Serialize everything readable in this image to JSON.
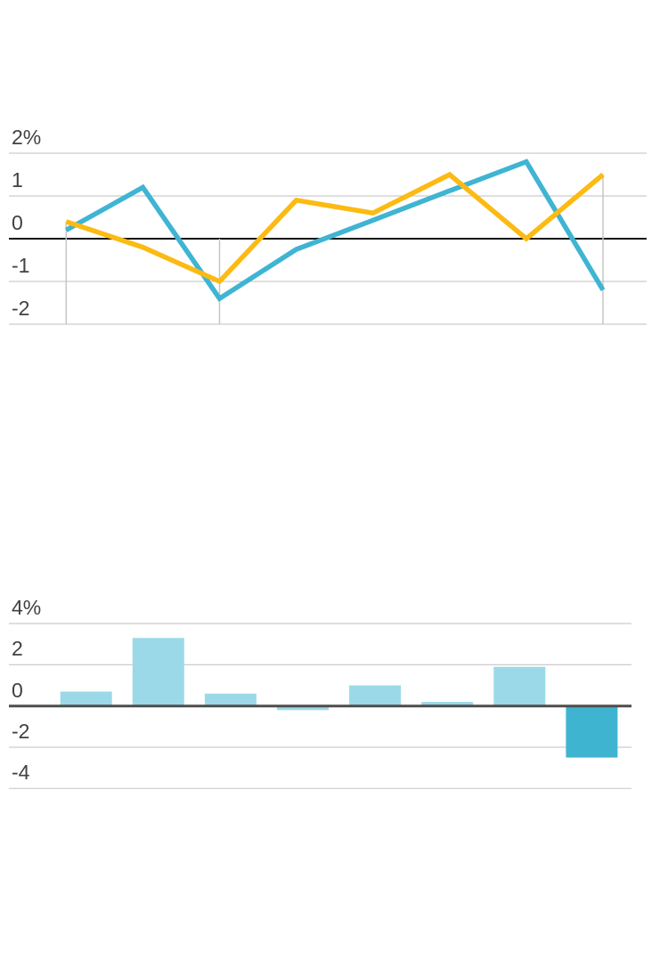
{
  "page": {
    "background": "#ffffff"
  },
  "colors": {
    "teal": "#3fb4d3",
    "yellow": "#fcba12",
    "light_blue_bar": "#9bd9e8",
    "dark_blue_bar": "#3fb4d1",
    "gridline": "#cccccc",
    "vertical_marker": "#c6c6c6",
    "zero_axis_top": "#111111",
    "zero_axis_bottom": "#4d4d4d",
    "tick_text": "#414141"
  },
  "chart_data": [
    {
      "type": "line",
      "title": "",
      "ylabel": "percent",
      "ylim": [
        -2,
        2
      ],
      "grid": true,
      "legend": "none",
      "y_ticks": [
        {
          "label": "2%",
          "value": 2
        },
        {
          "label": "1",
          "value": 1
        },
        {
          "label": "0",
          "value": 0
        },
        {
          "label": "-1",
          "value": -1
        },
        {
          "label": "-2",
          "value": -2
        }
      ],
      "n_points": 8,
      "series": [
        {
          "name": "teal-series",
          "color_key": "teal",
          "values": [
            0.2,
            1.2,
            -1.4,
            -0.25,
            0.43,
            1.12,
            1.8,
            -1.2
          ]
        },
        {
          "name": "yellow-series",
          "color_key": "yellow",
          "values": [
            0.4,
            -0.2,
            -1.0,
            0.9,
            0.6,
            1.5,
            0.0,
            1.5
          ]
        }
      ],
      "vertical_markers": [
        {
          "x_index": 0,
          "from_value": 0.4,
          "to_value": -2
        },
        {
          "x_index": 2,
          "from_value": 0.0,
          "to_value": -2
        },
        {
          "x_index": 7,
          "from_value": 1.5,
          "to_value": -2
        }
      ]
    },
    {
      "type": "bar",
      "title": "",
      "ylabel": "percent",
      "ylim": [
        -4,
        4
      ],
      "grid": true,
      "legend": "none",
      "y_ticks": [
        {
          "label": "4%",
          "value": 4
        },
        {
          "label": "2",
          "value": 2
        },
        {
          "label": "0",
          "value": 0
        },
        {
          "label": "-2",
          "value": -2
        },
        {
          "label": "-4",
          "value": -4
        }
      ],
      "values": [
        0.7,
        3.3,
        0.6,
        -0.2,
        1.0,
        0.2,
        1.9,
        -2.5
      ],
      "bar_color_keys": [
        "light_blue_bar",
        "light_blue_bar",
        "light_blue_bar",
        "light_blue_bar",
        "light_blue_bar",
        "light_blue_bar",
        "light_blue_bar",
        "dark_blue_bar"
      ]
    }
  ]
}
